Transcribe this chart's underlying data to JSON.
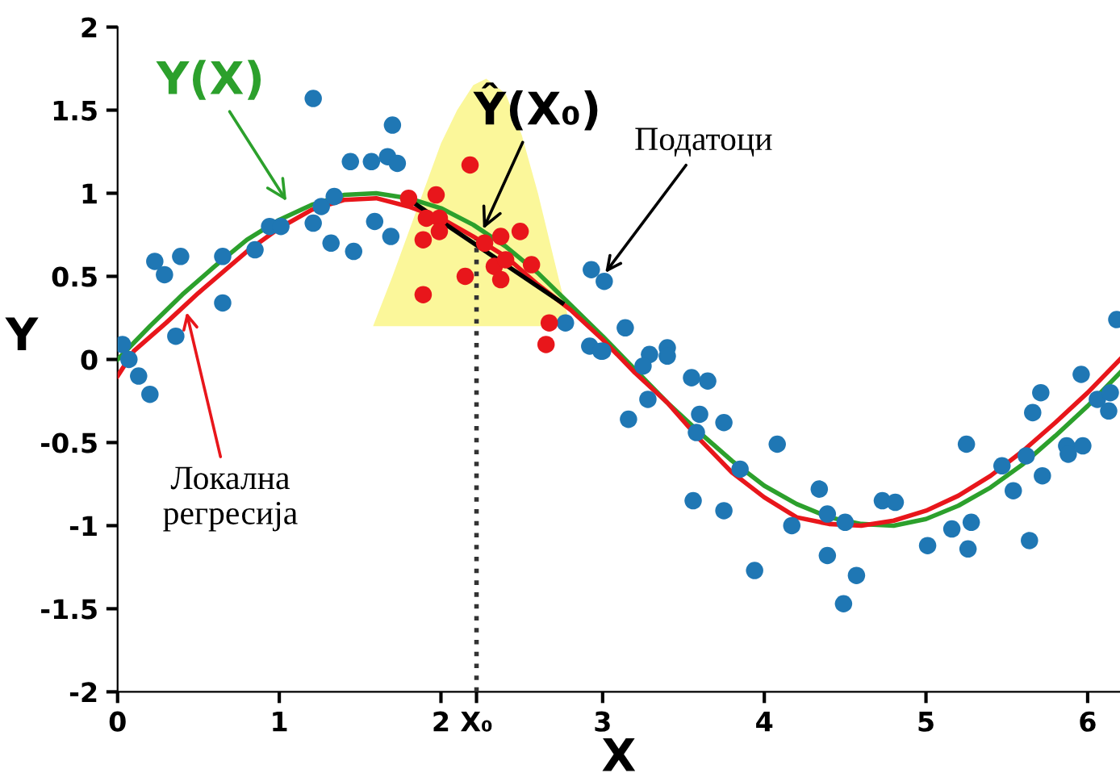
{
  "chart_data": {
    "type": "scatter",
    "xlabel": "X",
    "ylabel": "Y",
    "xlim": [
      0,
      6.2
    ],
    "ylim": [
      -2,
      2
    ],
    "xticks": [
      0,
      1,
      2,
      {
        "value": 2.22,
        "label": "X₀"
      },
      3,
      4,
      5,
      6
    ],
    "yticks": [
      -2,
      -1.5,
      -1,
      -0.5,
      0,
      0.5,
      1,
      1.5,
      2
    ],
    "grid": false,
    "annotations": [
      {
        "text": "Y(X)",
        "x": 1.06,
        "y": 0.93
      },
      {
        "text": "Ŷ(X₀)",
        "x": 2.25,
        "y": 0.76
      },
      {
        "text": "Локална\nрегресија",
        "x": 0.42,
        "y": 0.31
      },
      {
        "text": "Податоци",
        "x": 3.0,
        "y": 0.5
      }
    ],
    "series": [
      {
        "type": "area",
        "color": "#fbf79a",
        "x": [
          1.58,
          1.7,
          1.85,
          2.0,
          2.1,
          2.2,
          2.28,
          2.4,
          2.5,
          2.6,
          2.7,
          2.8
        ],
        "values": [
          0.2,
          0.5,
          0.9,
          1.3,
          1.5,
          1.65,
          1.69,
          1.6,
          1.35,
          1.0,
          0.6,
          0.2
        ]
      },
      {
        "marker": "circle",
        "color": "#1f77b4",
        "x": [
          0.03,
          0.07,
          0.13,
          0.2,
          0.23,
          0.29,
          0.39,
          0.36,
          0.65,
          0.65,
          0.85,
          0.94,
          1.01,
          1.21,
          1.26,
          1.34,
          1.32,
          1.21,
          1.44,
          1.57,
          1.67,
          1.7,
          1.73,
          1.46,
          1.59,
          1.69,
          2.77,
          2.93,
          3.01,
          2.92,
          3.0,
          3.14,
          2.99,
          3.29,
          3.25,
          3.4,
          3.4,
          3.28,
          3.16,
          3.55,
          3.65,
          3.6,
          3.58,
          3.75,
          4.08,
          3.85,
          3.56,
          3.75,
          4.17,
          3.94,
          4.34,
          4.39,
          4.5,
          4.39,
          4.57,
          4.49,
          4.73,
          4.81,
          5.01,
          5.16,
          5.28,
          5.26,
          5.25,
          5.47,
          5.54,
          5.64,
          5.62,
          5.72,
          5.66,
          5.71,
          5.87,
          5.88,
          5.97,
          5.96,
          6.06,
          6.13,
          6.14,
          6.18
        ],
        "values": [
          0.09,
          0.0,
          -0.1,
          -0.21,
          0.59,
          0.51,
          0.62,
          0.14,
          0.62,
          0.34,
          0.66,
          0.8,
          0.8,
          0.82,
          0.92,
          0.98,
          0.7,
          1.57,
          1.19,
          1.19,
          1.22,
          1.41,
          1.18,
          0.65,
          0.83,
          0.74,
          0.22,
          0.54,
          0.47,
          0.08,
          0.05,
          0.19,
          0.05,
          0.03,
          -0.04,
          0.07,
          0.02,
          -0.24,
          -0.36,
          -0.11,
          -0.13,
          -0.33,
          -0.44,
          -0.38,
          -0.51,
          -0.66,
          -0.85,
          -0.91,
          -1.0,
          -1.27,
          -0.78,
          -0.93,
          -0.98,
          -1.18,
          -1.3,
          -1.47,
          -0.85,
          -0.86,
          -1.12,
          -1.02,
          -0.98,
          -1.14,
          -0.51,
          -0.64,
          -0.79,
          -1.09,
          -0.58,
          -0.7,
          -0.32,
          -0.2,
          -0.52,
          -0.57,
          -0.52,
          -0.09,
          -0.24,
          -0.31,
          -0.2,
          0.24
        ]
      },
      {
        "marker": "circle",
        "color": "#e8161b",
        "x": [
          2.18,
          1.97,
          1.8,
          1.91,
          1.99,
          1.89,
          1.99,
          2.27,
          2.37,
          2.49,
          2.33,
          2.4,
          2.37,
          2.56,
          2.15,
          1.89,
          2.67,
          2.65
        ],
        "values": [
          1.17,
          0.99,
          0.97,
          0.85,
          0.85,
          0.72,
          0.77,
          0.7,
          0.74,
          0.77,
          0.56,
          0.6,
          0.48,
          0.57,
          0.5,
          0.39,
          0.22,
          0.09
        ]
      },
      {
        "type": "line",
        "color": "#2ca02c",
        "x": [
          0,
          0.2,
          0.4,
          0.6,
          0.8,
          1.0,
          1.2,
          1.4,
          1.6,
          1.8,
          2.0,
          2.2,
          2.4,
          2.6,
          2.8,
          3.0,
          3.2,
          3.4,
          3.6,
          3.8,
          4.0,
          4.2,
          4.4,
          4.6,
          4.8,
          5.0,
          5.2,
          5.4,
          5.6,
          5.8,
          6.0,
          6.2
        ],
        "values": [
          0.0,
          0.2,
          0.39,
          0.56,
          0.72,
          0.84,
          0.93,
          0.99,
          1.0,
          0.97,
          0.91,
          0.81,
          0.68,
          0.52,
          0.33,
          0.14,
          -0.06,
          -0.26,
          -0.44,
          -0.61,
          -0.76,
          -0.87,
          -0.95,
          -0.99,
          -1.0,
          -0.96,
          -0.88,
          -0.77,
          -0.63,
          -0.46,
          -0.28,
          -0.08
        ]
      },
      {
        "type": "line",
        "color": "#e8161b",
        "x": [
          0,
          0.1,
          0.3,
          0.5,
          0.8,
          1.0,
          1.2,
          1.4,
          1.6,
          1.8,
          2.0,
          2.2,
          2.4,
          2.6,
          2.8,
          3.0,
          3.2,
          3.4,
          3.6,
          3.8,
          4.0,
          4.2,
          4.4,
          4.6,
          4.8,
          5.0,
          5.2,
          5.4,
          5.6,
          5.8,
          6.0,
          6.2
        ],
        "values": [
          -0.1,
          0.05,
          0.22,
          0.4,
          0.65,
          0.79,
          0.9,
          0.96,
          0.97,
          0.92,
          0.85,
          0.74,
          0.62,
          0.45,
          0.3,
          0.12,
          -0.08,
          -0.26,
          -0.48,
          -0.68,
          -0.83,
          -0.95,
          -0.99,
          -1.0,
          -0.97,
          -0.91,
          -0.82,
          -0.7,
          -0.55,
          -0.38,
          -0.2,
          0.0
        ]
      },
      {
        "type": "line",
        "color": "#000000",
        "x": [
          1.82,
          2.75
        ],
        "values": [
          0.95,
          0.34
        ]
      },
      {
        "type": "line",
        "color": "#333333",
        "line_style": "dotted",
        "x": [
          2.22,
          2.22
        ],
        "values": [
          -2,
          0.72
        ]
      }
    ]
  }
}
